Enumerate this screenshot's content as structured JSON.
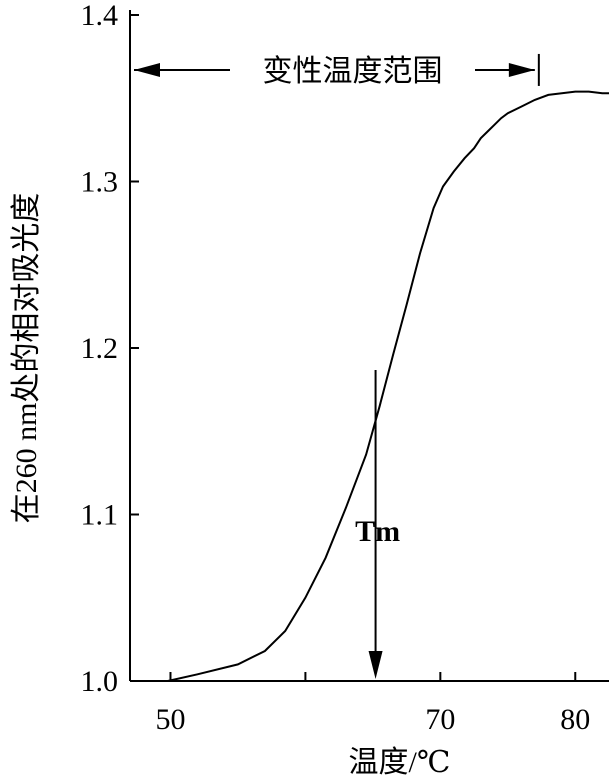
{
  "chart_data": {
    "type": "line",
    "xlabel": "温度/℃",
    "ylabel": "在260 nm处的相对吸光度",
    "xlim": [
      47,
      82.5
    ],
    "ylim": [
      1.0,
      1.4
    ],
    "x_ticks": [
      50,
      60,
      70,
      80
    ],
    "x_tick_labels": [
      "50",
      "",
      "70",
      "80"
    ],
    "y_ticks": [
      1.0,
      1.1,
      1.2,
      1.3,
      1.4
    ],
    "y_tick_labels": [
      "1.0",
      "1.1",
      "1.2",
      "1.3",
      "1.4"
    ],
    "series": [
      {
        "x": [
          49.8,
          52,
          55,
          57,
          58.5,
          60,
          61.5,
          63,
          64.5,
          65.5,
          66.5,
          67.5,
          68.5,
          69.5,
          70.2,
          71,
          71.8,
          72.5,
          73,
          73.5,
          74,
          74.5,
          75,
          76,
          77,
          78,
          79,
          80,
          81,
          82,
          82.5
        ],
        "y": [
          1.0,
          1.004,
          1.01,
          1.018,
          1.03,
          1.05,
          1.074,
          1.104,
          1.136,
          1.165,
          1.196,
          1.226,
          1.257,
          1.284,
          1.297,
          1.306,
          1.314,
          1.32,
          1.326,
          1.33,
          1.334,
          1.338,
          1.341,
          1.345,
          1.349,
          1.352,
          1.353,
          1.354,
          1.354,
          1.353,
          1.353
        ]
      }
    ],
    "annotations": {
      "range_label": "变性温度范围",
      "range_x": [
        47,
        77.3
      ],
      "range_y": 1.367,
      "tm_label": "Tm",
      "tm_x": 65.2
    },
    "grid": false,
    "legend": "none"
  }
}
